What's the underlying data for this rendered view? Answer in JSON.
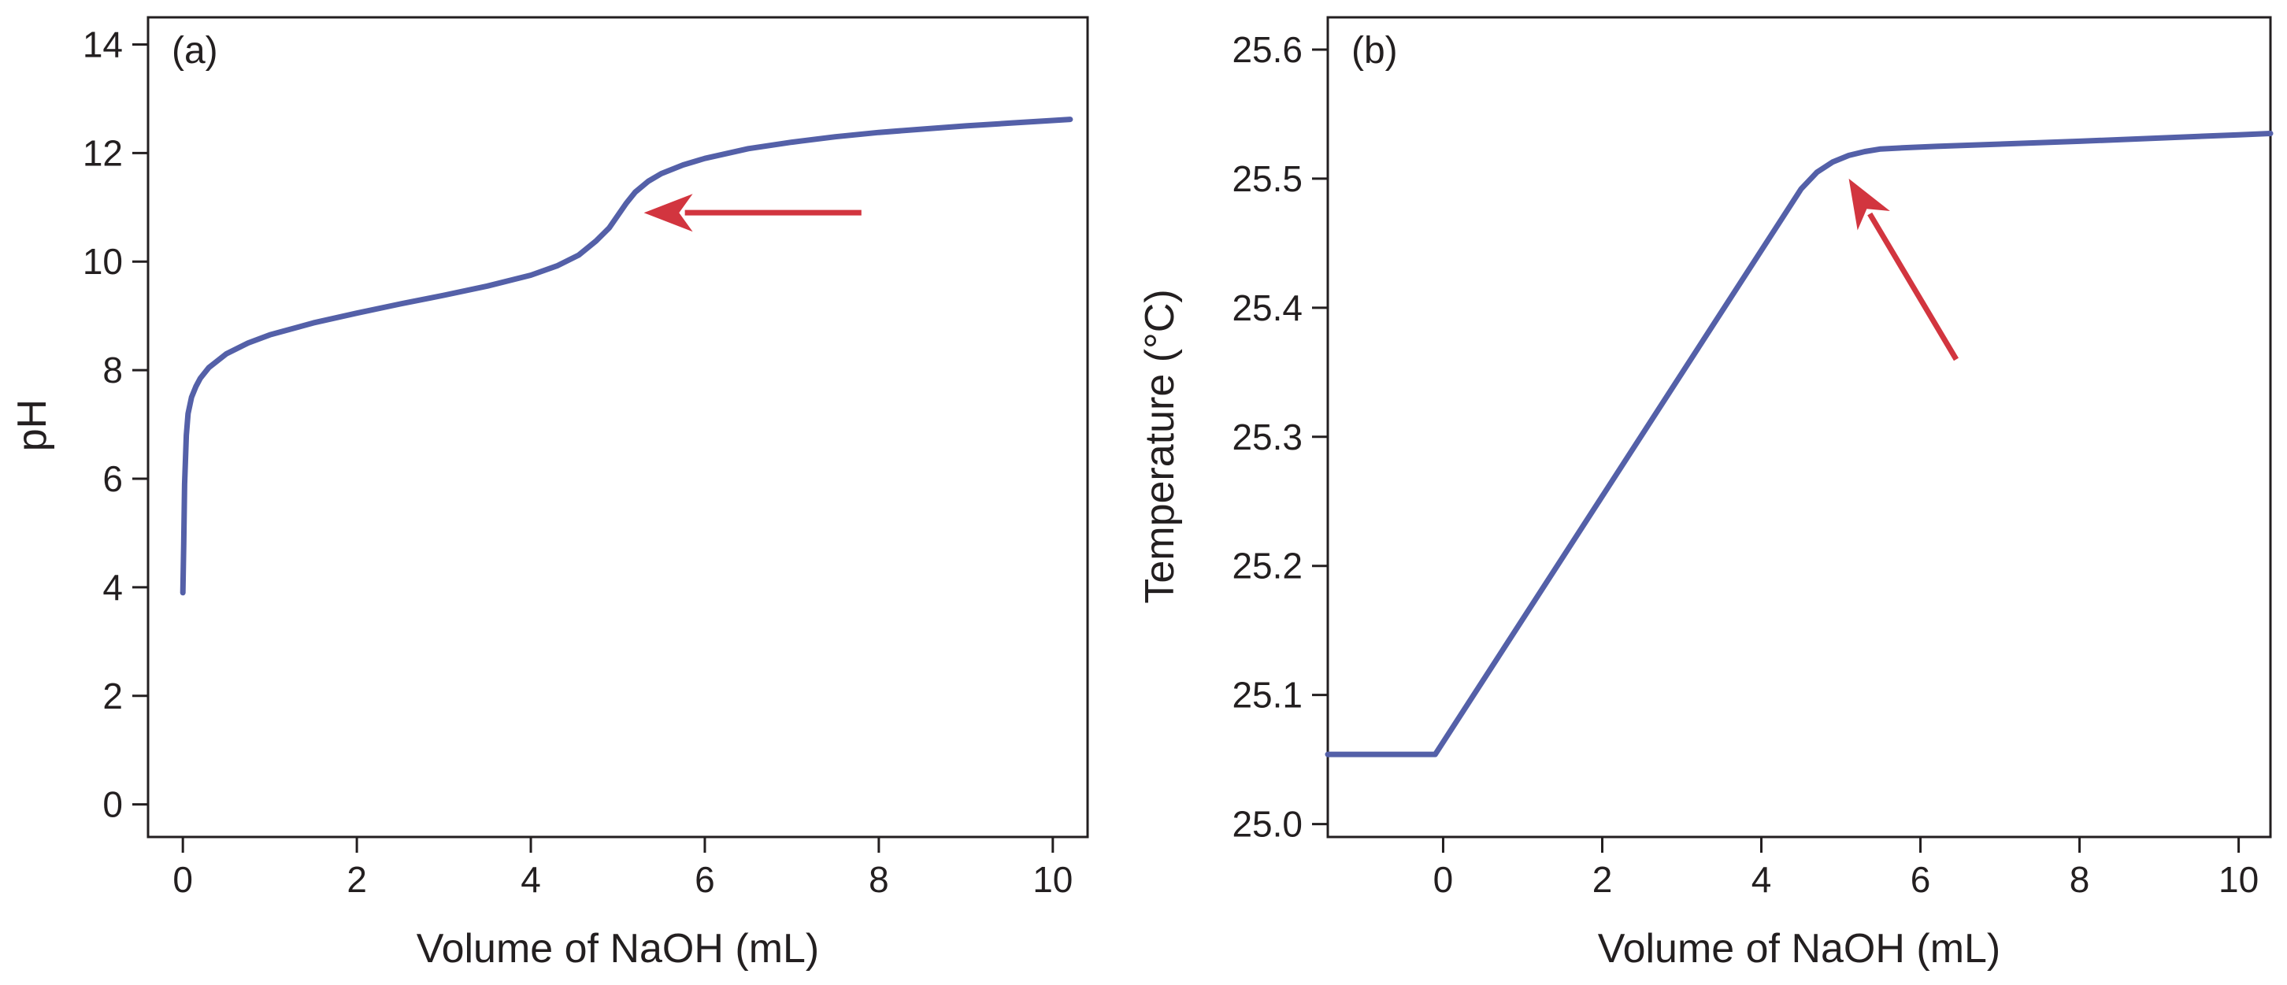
{
  "chart_data": [
    {
      "type": "line",
      "panel_label": "(a)",
      "xlabel": "Volume of NaOH (mL)",
      "ylabel": "pH",
      "xlim": [
        -0.4,
        10.4
      ],
      "ylim": [
        -0.6,
        14.5
      ],
      "xticks": [
        0,
        2,
        4,
        6,
        8,
        10
      ],
      "xtick_labels": [
        "0",
        "2",
        "4",
        "6",
        "8",
        "10"
      ],
      "yticks": [
        0,
        2,
        4,
        6,
        8,
        10,
        12,
        14
      ],
      "ytick_labels": [
        "0",
        "2",
        "4",
        "6",
        "8",
        "10",
        "12",
        "14"
      ],
      "grid": false,
      "line_color": "#5460a8",
      "series": [
        {
          "x": [
            0.0,
            0.01,
            0.02,
            0.04,
            0.06,
            0.1,
            0.15,
            0.2,
            0.3,
            0.5,
            0.75,
            1.0,
            1.5,
            2.0,
            2.5,
            3.0,
            3.5,
            4.0,
            4.3,
            4.55,
            4.75,
            4.9,
            5.0,
            5.1,
            5.2,
            5.35,
            5.5,
            5.75,
            6.0,
            6.5,
            7.0,
            7.5,
            8.0,
            8.5,
            9.0,
            9.5,
            10.0,
            10.2
          ],
          "y": [
            3.9,
            4.8,
            5.9,
            6.8,
            7.2,
            7.5,
            7.7,
            7.85,
            8.05,
            8.3,
            8.5,
            8.65,
            8.87,
            9.05,
            9.22,
            9.38,
            9.55,
            9.75,
            9.92,
            10.12,
            10.38,
            10.62,
            10.85,
            11.08,
            11.28,
            11.48,
            11.62,
            11.78,
            11.9,
            12.08,
            12.2,
            12.3,
            12.38,
            12.44,
            12.5,
            12.55,
            12.6,
            12.62
          ]
        }
      ],
      "arrow_color": "#d2353f",
      "annotations": [
        {
          "type": "arrow",
          "from": [
            7.8,
            10.9
          ],
          "to": [
            5.3,
            10.9
          ]
        }
      ]
    },
    {
      "type": "line",
      "panel_label": "(b)",
      "xlabel": "Volume of NaOH (mL)",
      "ylabel": "Temperature (°C)",
      "xlim": [
        -1.45,
        10.4
      ],
      "ylim": [
        24.99,
        25.625
      ],
      "xticks": [
        0,
        2,
        4,
        6,
        8,
        10
      ],
      "xtick_labels": [
        "0",
        "2",
        "4",
        "6",
        "8",
        "10"
      ],
      "yticks": [
        25.0,
        25.1,
        25.2,
        25.3,
        25.4,
        25.5,
        25.6
      ],
      "ytick_labels": [
        "25.0",
        "25.1",
        "25.2",
        "25.3",
        "25.4",
        "25.5",
        "25.6"
      ],
      "grid": false,
      "line_color": "#5460a8",
      "series": [
        {
          "x": [
            -1.45,
            -0.1,
            4.5,
            4.7,
            4.9,
            5.1,
            5.3,
            5.5,
            5.8,
            6.2,
            8.0,
            10.0,
            10.4
          ],
          "y": [
            25.054,
            25.054,
            25.492,
            25.505,
            25.513,
            25.518,
            25.521,
            25.523,
            25.524,
            25.525,
            25.529,
            25.534,
            25.535
          ]
        }
      ],
      "arrow_color": "#d2353f",
      "annotations": [
        {
          "type": "arrow",
          "from": [
            6.45,
            25.36
          ],
          "to": [
            5.1,
            25.5
          ]
        }
      ]
    }
  ]
}
